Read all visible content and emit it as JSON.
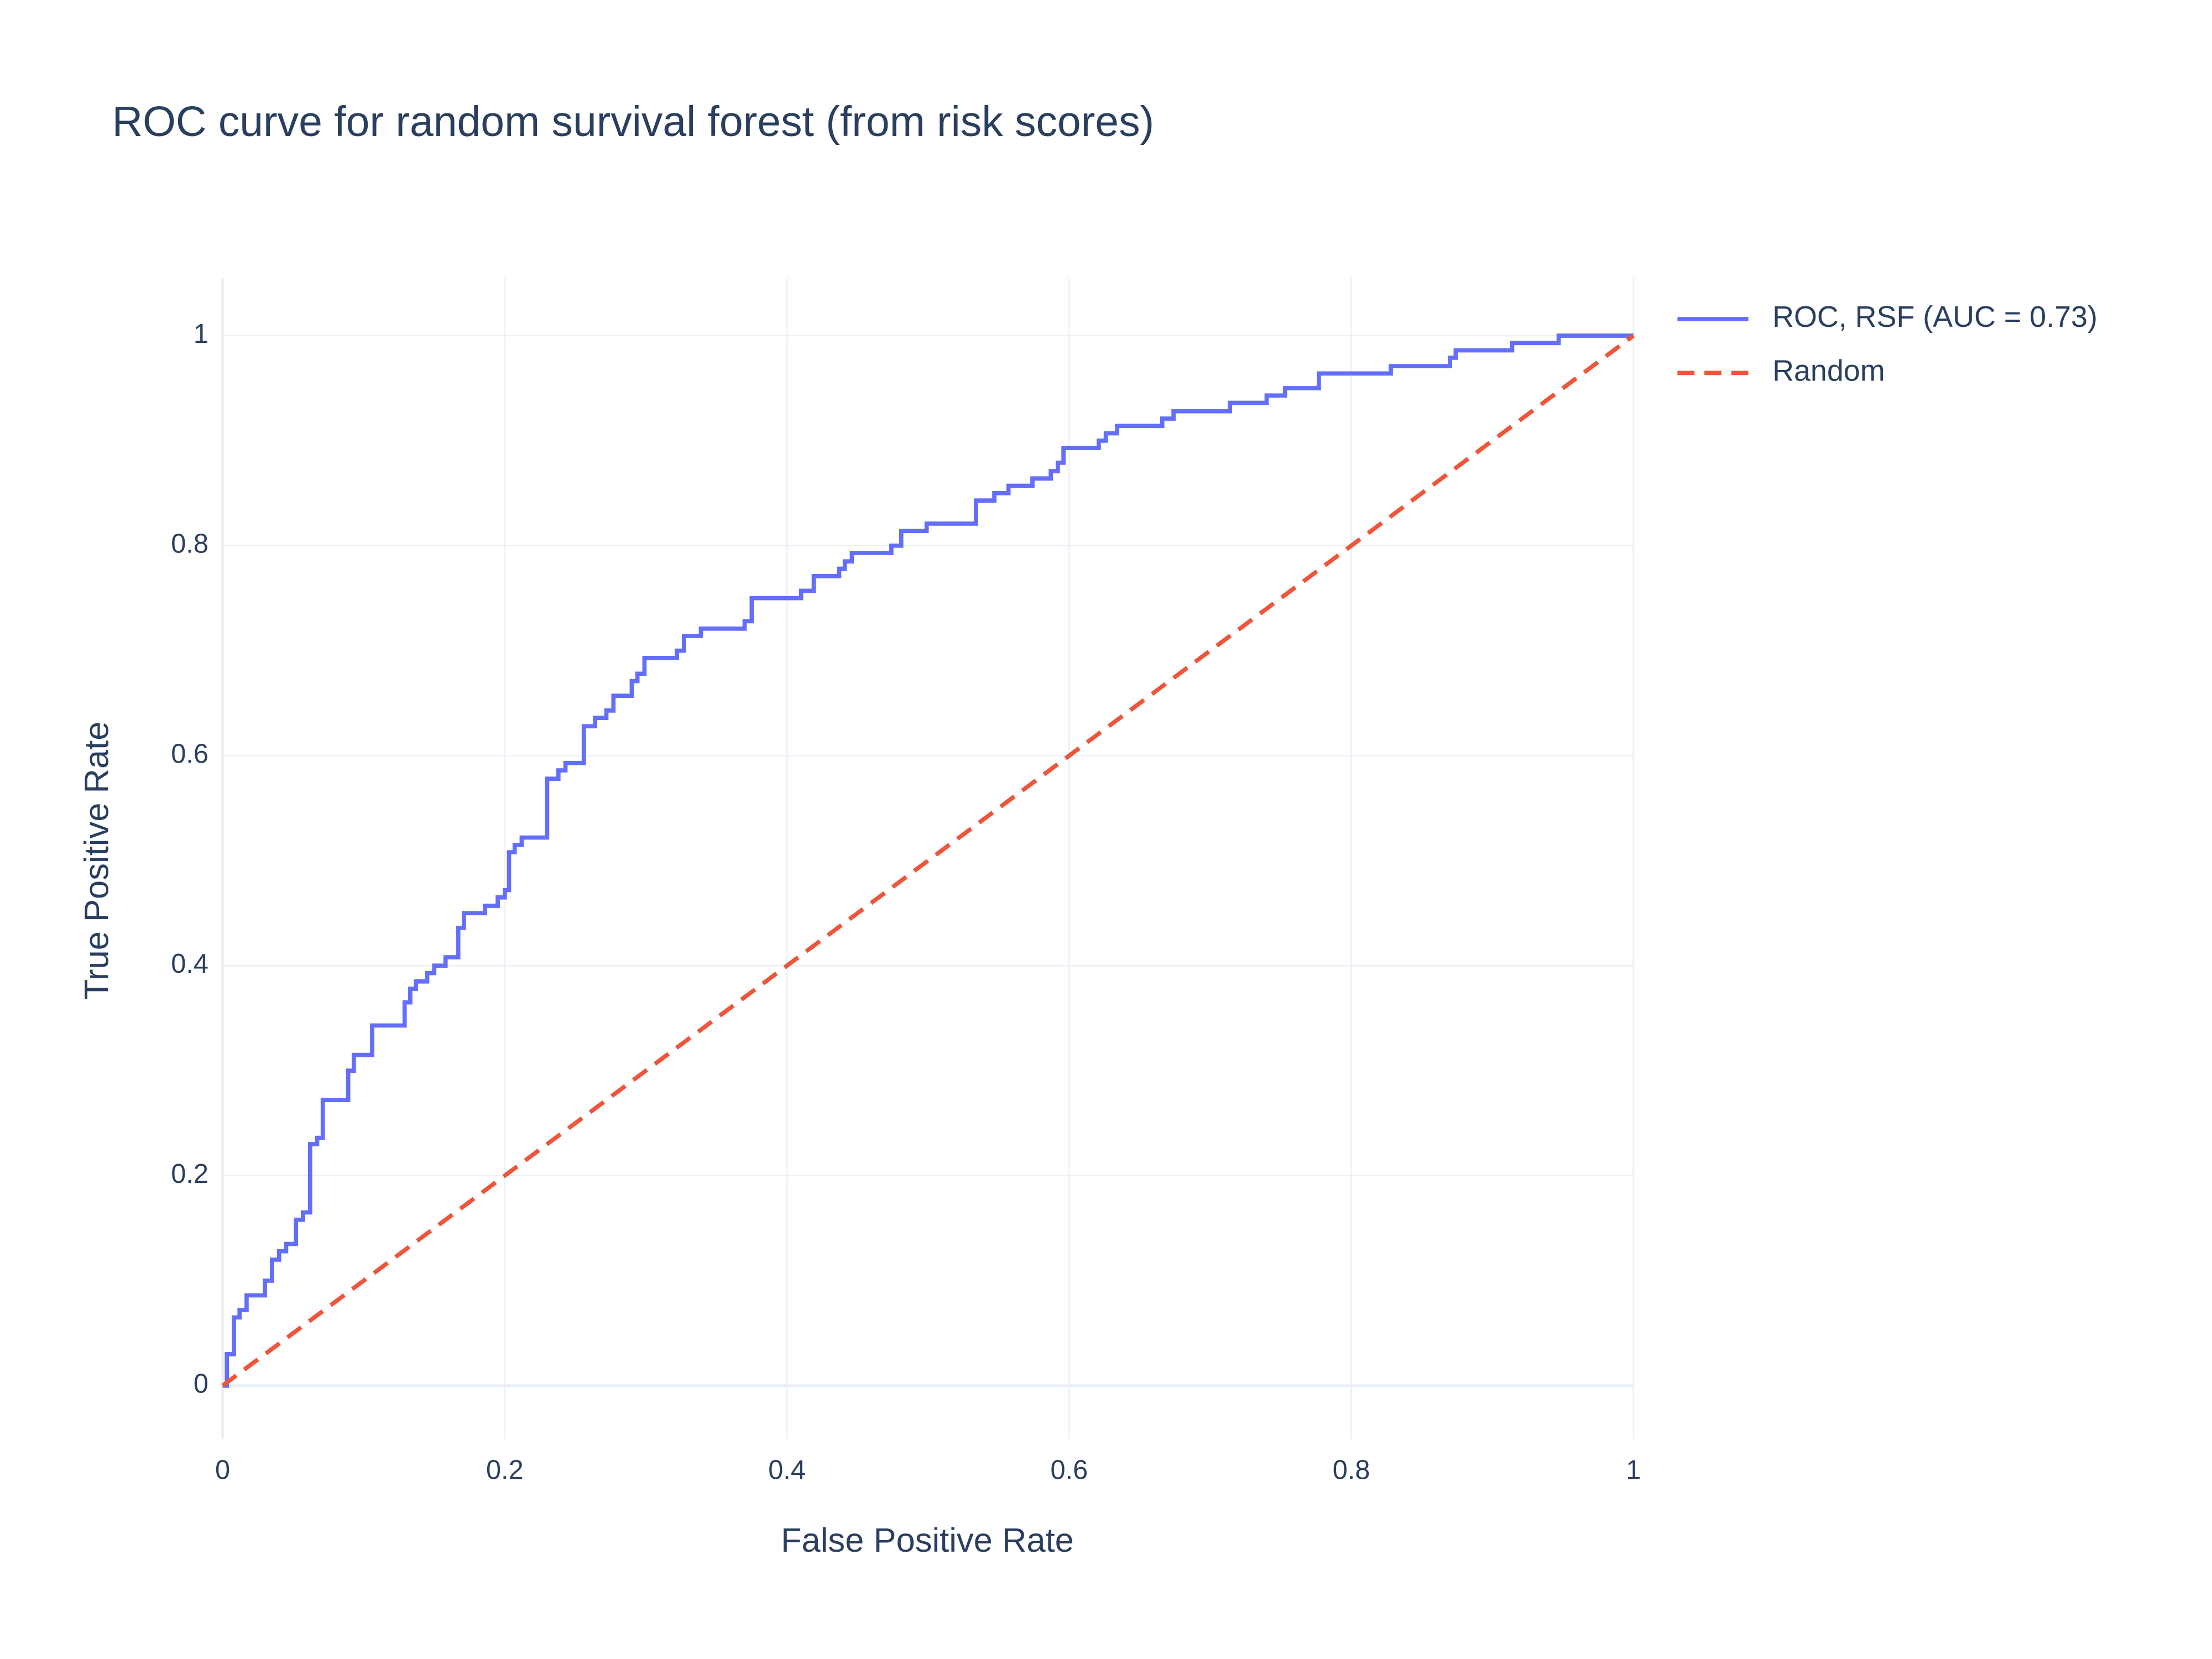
{
  "chart_data": {
    "type": "line",
    "title": "ROC curve for random survival forest (from risk scores)",
    "x_label": "False Positive Rate",
    "y_label": "True Positive Rate",
    "xlim": [
      0,
      1
    ],
    "ylim": [
      -0.051,
      1.055
    ],
    "xticks": [
      0,
      0.2,
      0.4,
      0.6,
      0.8,
      1
    ],
    "yticks": [
      0,
      0.2,
      0.4,
      0.6,
      0.8,
      1
    ],
    "grid": true,
    "legend": "outside-right",
    "series": [
      {
        "name": "ROC, RSF (AUC = 0.73)",
        "color": "#636efa",
        "dash": "solid",
        "x": [
          0,
          0.003,
          0.003,
          0.008,
          0.008,
          0.012,
          0.012,
          0.017,
          0.017,
          0.03,
          0.03,
          0.035,
          0.035,
          0.04,
          0.04,
          0.045,
          0.045,
          0.052,
          0.052,
          0.057,
          0.057,
          0.062,
          0.062,
          0.067,
          0.067,
          0.071,
          0.071,
          0.089,
          0.089,
          0.093,
          0.093,
          0.106,
          0.106,
          0.129,
          0.129,
          0.133,
          0.133,
          0.137,
          0.137,
          0.145,
          0.145,
          0.15,
          0.15,
          0.158,
          0.158,
          0.167,
          0.167,
          0.171,
          0.171,
          0.186,
          0.186,
          0.195,
          0.195,
          0.2,
          0.2,
          0.203,
          0.203,
          0.207,
          0.207,
          0.212,
          0.212,
          0.23,
          0.23,
          0.238,
          0.238,
          0.243,
          0.243,
          0.256,
          0.256,
          0.264,
          0.264,
          0.272,
          0.272,
          0.277,
          0.277,
          0.29,
          0.29,
          0.294,
          0.294,
          0.299,
          0.299,
          0.322,
          0.322,
          0.327,
          0.327,
          0.339,
          0.339,
          0.37,
          0.37,
          0.375,
          0.375,
          0.41,
          0.41,
          0.419,
          0.419,
          0.437,
          0.437,
          0.441,
          0.441,
          0.446,
          0.446,
          0.474,
          0.474,
          0.481,
          0.481,
          0.499,
          0.499,
          0.534,
          0.534,
          0.547,
          0.547,
          0.557,
          0.557,
          0.574,
          0.574,
          0.587,
          0.587,
          0.592,
          0.592,
          0.596,
          0.596,
          0.621,
          0.621,
          0.626,
          0.626,
          0.634,
          0.634,
          0.666,
          0.666,
          0.674,
          0.674,
          0.714,
          0.714,
          0.74,
          0.74,
          0.753,
          0.753,
          0.777,
          0.777,
          0.828,
          0.828,
          0.87,
          0.87,
          0.874,
          0.874,
          0.914,
          0.914,
          0.947,
          0.947,
          1
        ],
        "y": [
          0,
          0,
          0.03,
          0.03,
          0.065,
          0.065,
          0.072,
          0.072,
          0.086,
          0.086,
          0.1,
          0.1,
          0.12,
          0.12,
          0.128,
          0.128,
          0.135,
          0.135,
          0.158,
          0.158,
          0.165,
          0.165,
          0.23,
          0.23,
          0.236,
          0.236,
          0.272,
          0.272,
          0.3,
          0.3,
          0.315,
          0.315,
          0.343,
          0.343,
          0.365,
          0.365,
          0.378,
          0.378,
          0.385,
          0.385,
          0.393,
          0.393,
          0.4,
          0.4,
          0.408,
          0.408,
          0.436,
          0.436,
          0.45,
          0.45,
          0.457,
          0.457,
          0.465,
          0.465,
          0.472,
          0.472,
          0.508,
          0.508,
          0.515,
          0.515,
          0.522,
          0.522,
          0.578,
          0.578,
          0.586,
          0.586,
          0.593,
          0.593,
          0.628,
          0.628,
          0.636,
          0.636,
          0.643,
          0.643,
          0.657,
          0.657,
          0.671,
          0.671,
          0.678,
          0.678,
          0.693,
          0.693,
          0.7,
          0.7,
          0.714,
          0.714,
          0.721,
          0.721,
          0.728,
          0.728,
          0.75,
          0.75,
          0.757,
          0.757,
          0.771,
          0.771,
          0.778,
          0.778,
          0.785,
          0.785,
          0.793,
          0.793,
          0.8,
          0.8,
          0.814,
          0.814,
          0.821,
          0.821,
          0.843,
          0.843,
          0.85,
          0.85,
          0.857,
          0.857,
          0.864,
          0.864,
          0.871,
          0.871,
          0.879,
          0.879,
          0.893,
          0.893,
          0.9,
          0.9,
          0.907,
          0.907,
          0.914,
          0.914,
          0.921,
          0.921,
          0.928,
          0.928,
          0.936,
          0.936,
          0.943,
          0.943,
          0.95,
          0.95,
          0.964,
          0.964,
          0.971,
          0.971,
          0.979,
          0.979,
          0.986,
          0.986,
          0.993,
          0.993,
          1.0,
          1
        ]
      },
      {
        "name": "Random",
        "color": "#EF553B",
        "dash": "dash",
        "x": [
          0,
          1
        ],
        "y": [
          0,
          1
        ]
      }
    ]
  }
}
